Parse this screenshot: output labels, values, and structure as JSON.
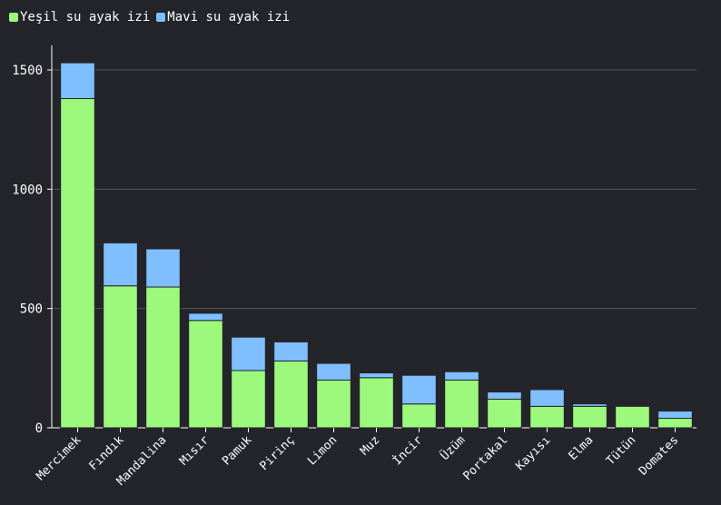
{
  "chart_data": {
    "type": "bar",
    "stacked": true,
    "title": "",
    "xlabel": "",
    "ylabel": "",
    "ylim": [
      0,
      1600
    ],
    "yticks": [
      0,
      500,
      1000,
      1500
    ],
    "grid": true,
    "legend_position": "top-left",
    "categories": [
      "Mercimek",
      "Fındık",
      "Mandalina",
      "Mısır",
      "Pamuk",
      "Pirinç",
      "Limon",
      "Muz",
      "İncir",
      "Üzüm",
      "Portakal",
      "Kayısı",
      "Elma",
      "Tütün",
      "Domates"
    ],
    "series": [
      {
        "name": "Yeşil su ayak izi",
        "color": "#9cf97c",
        "values": [
          1380,
          595,
          590,
          450,
          240,
          280,
          200,
          210,
          100,
          200,
          120,
          90,
          90,
          90,
          40
        ]
      },
      {
        "name": "Mavi su ayak izi",
        "color": "#7fbfff",
        "values": [
          150,
          180,
          160,
          30,
          140,
          80,
          70,
          20,
          120,
          35,
          30,
          70,
          10,
          0,
          30
        ]
      }
    ]
  }
}
